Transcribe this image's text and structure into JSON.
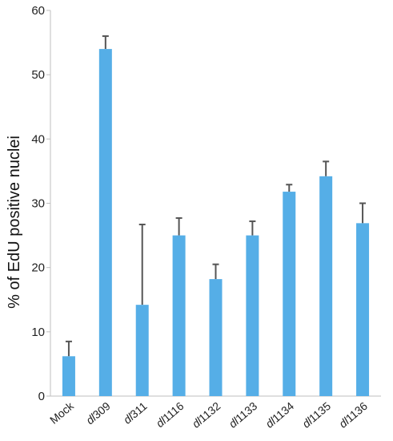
{
  "chart_data": {
    "type": "bar",
    "title": "",
    "xlabel": "",
    "ylabel": "% of EdU positive nuclei",
    "ylim": [
      0,
      60
    ],
    "yticks": [
      0,
      10,
      20,
      30,
      40,
      50,
      60
    ],
    "grid": false,
    "legend": "none",
    "categories": [
      {
        "prefix": "",
        "suffix": "Mock"
      },
      {
        "prefix": "dl",
        "suffix": "309"
      },
      {
        "prefix": "dl",
        "suffix": "311"
      },
      {
        "prefix": "dl",
        "suffix": "1116"
      },
      {
        "prefix": "dl",
        "suffix": "1132"
      },
      {
        "prefix": "dl",
        "suffix": "1133"
      },
      {
        "prefix": "dl",
        "suffix": "1134"
      },
      {
        "prefix": "dl",
        "suffix": "1135"
      },
      {
        "prefix": "dl",
        "suffix": "1136"
      }
    ],
    "values": [
      6.2,
      54.0,
      14.2,
      25.0,
      18.2,
      25.0,
      31.8,
      34.2,
      26.9
    ],
    "error_upper": [
      2.3,
      2.0,
      12.5,
      2.7,
      2.3,
      2.2,
      1.1,
      2.3,
      3.1
    ],
    "colors": {
      "bar": "#55aee7",
      "error_bar": "#555555",
      "axis": "#bfbfbf"
    }
  }
}
